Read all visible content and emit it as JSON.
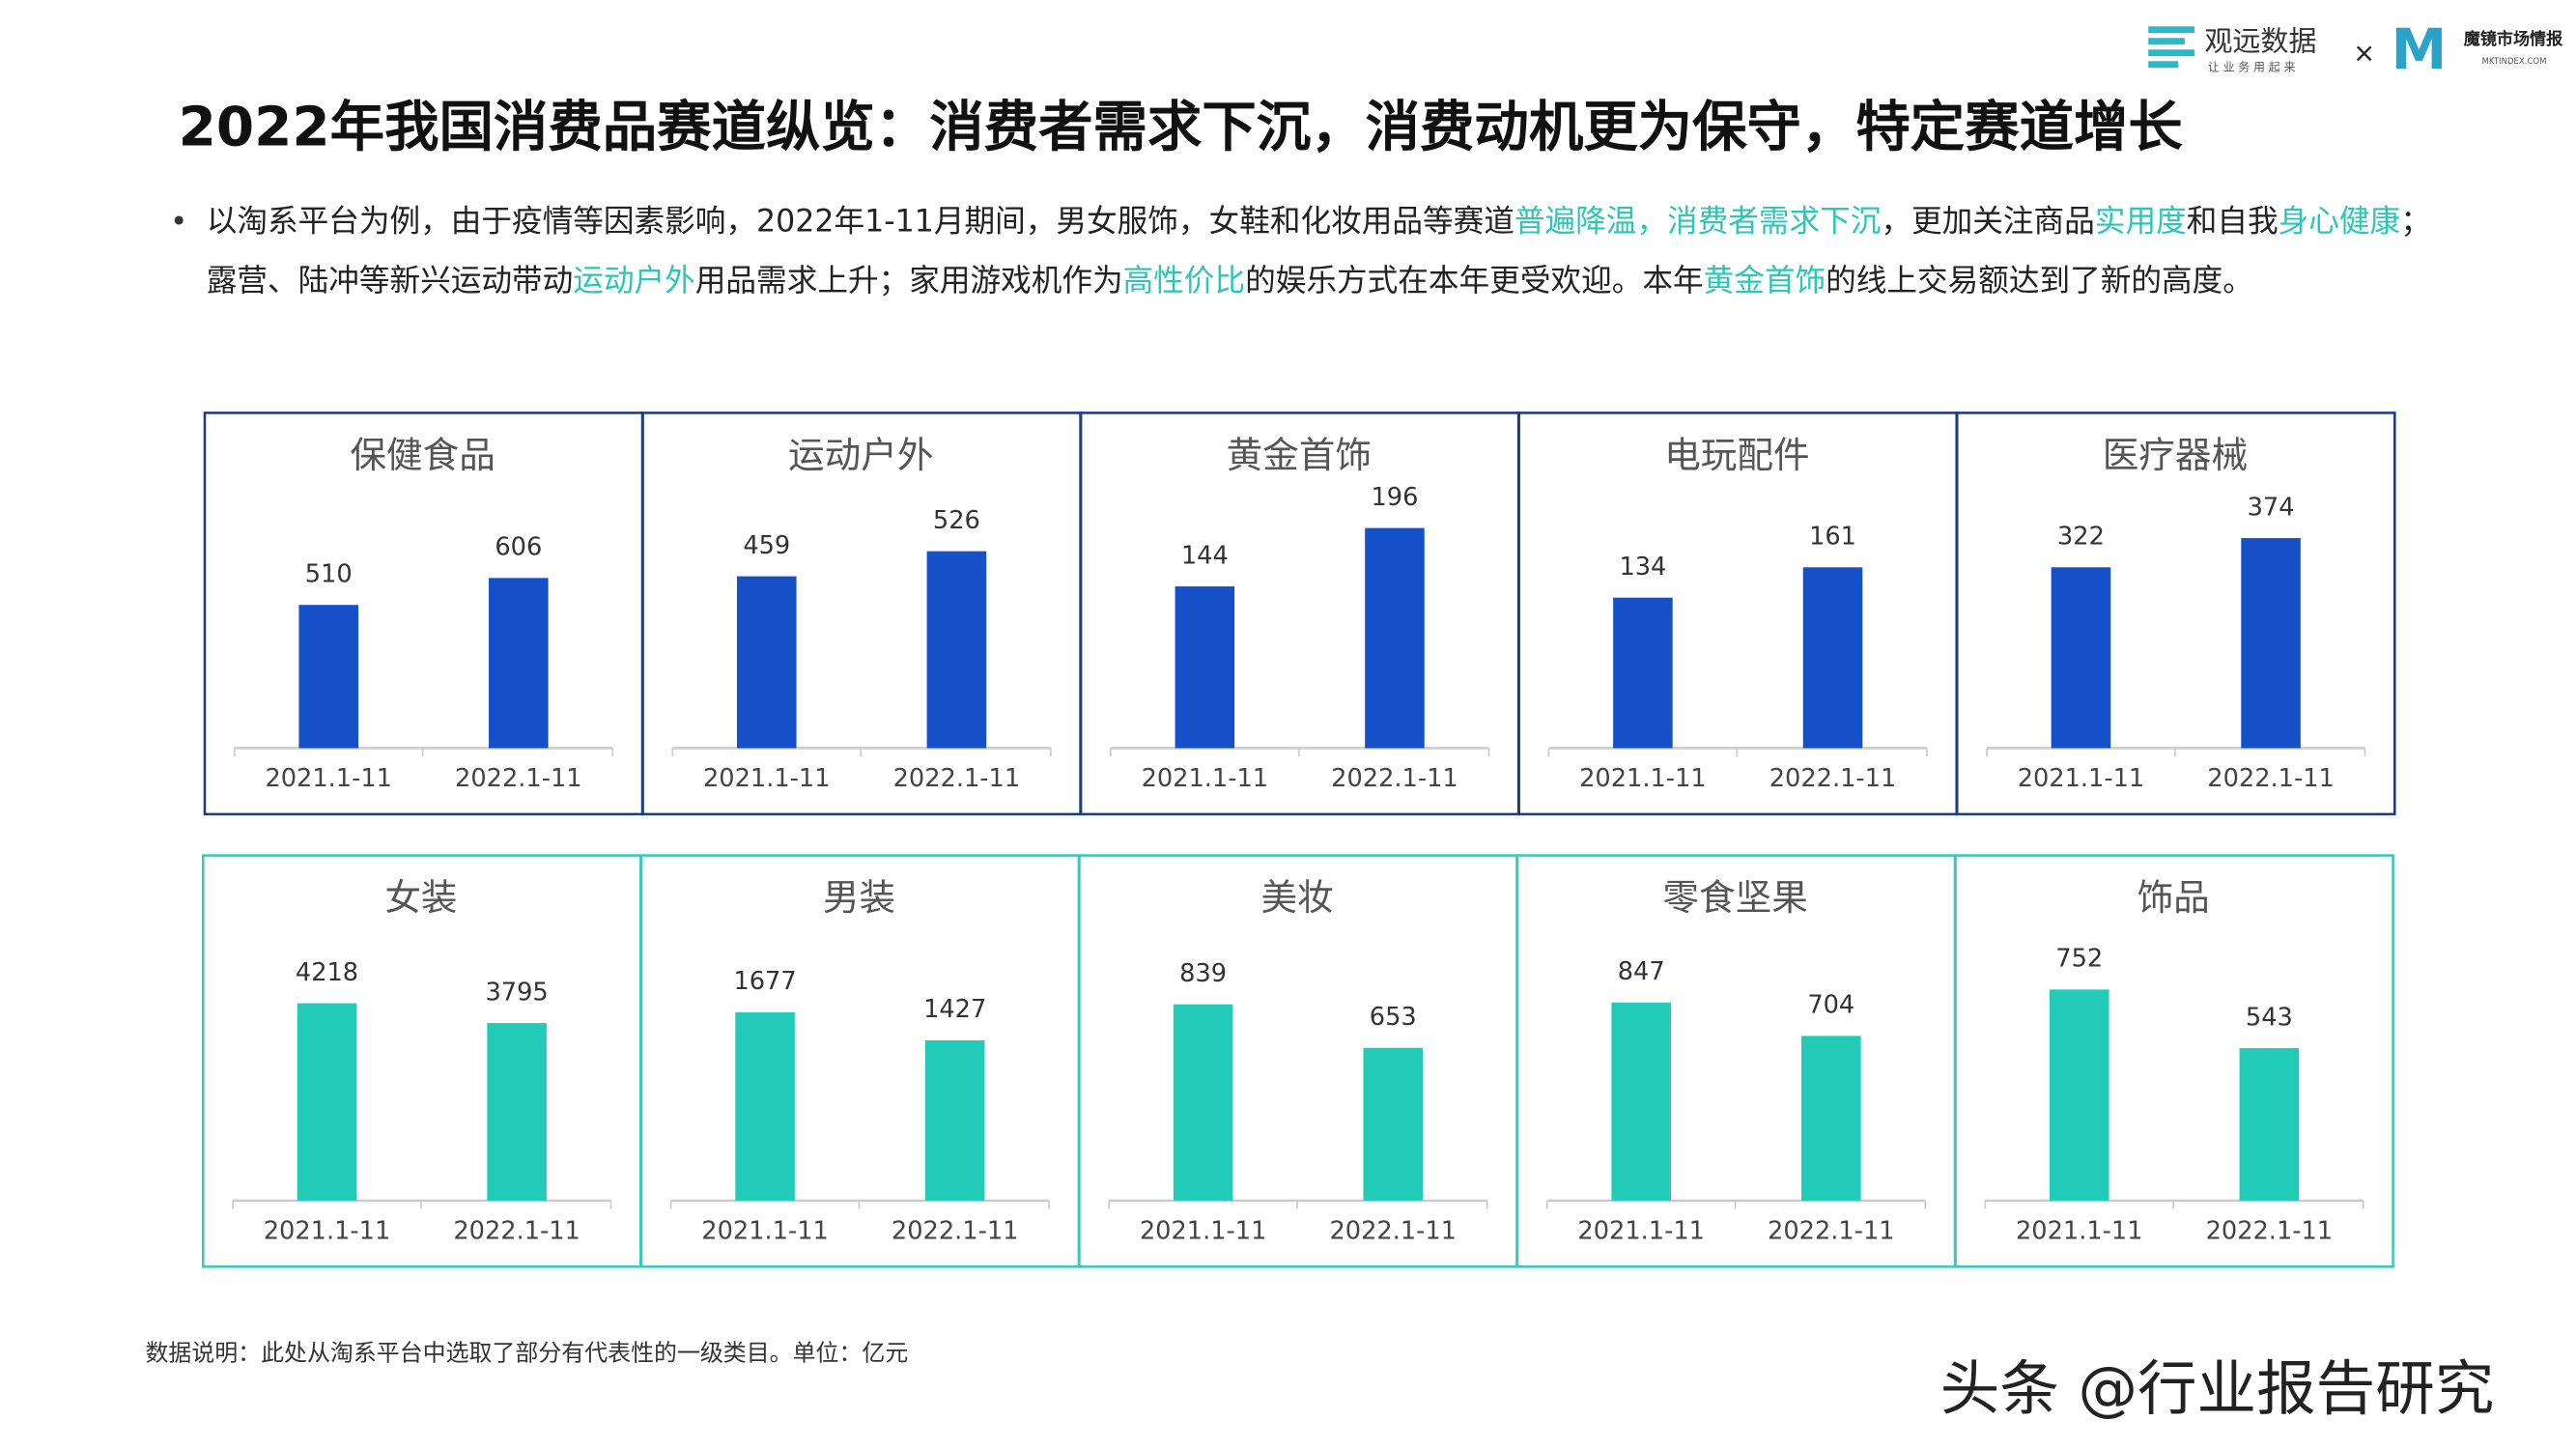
{
  "header": {
    "title": "2022年我国消费品赛道纵览：消费者需求下沉，消费动机更为保守，特定赛道增长",
    "logo_left": "观远数据",
    "logo_left_sub": "让 业 务 用 起 来",
    "logo_sep": "×",
    "logo_right_mark": "M",
    "logo_right": "魔镜市场情报",
    "logo_right_sub": "MKTINDEX.COM"
  },
  "bullet": [
    {
      "text": "以淘系平台为例，由于疫情等因素影响，2022年1-11月期间，男女服饰，女鞋和化妆用品等赛道",
      "highlight": false
    },
    {
      "text": "普遍降温，消费者需求下沉",
      "highlight": true
    },
    {
      "text": "，更加关注商品",
      "highlight": false
    },
    {
      "text": "实用度",
      "highlight": true
    },
    {
      "text": "和自我",
      "highlight": false
    },
    {
      "text": "身心健康",
      "highlight": true
    },
    {
      "text": "；露营、陆冲等新兴运动带动",
      "highlight": false
    },
    {
      "text": "运动户外",
      "highlight": true
    },
    {
      "text": "用品需求上升；家用游戏机作为",
      "highlight": false
    },
    {
      "text": "高性价比",
      "highlight": true
    },
    {
      "text": "的娱乐方式在本年更受欢迎。本年",
      "highlight": false
    },
    {
      "text": "黄金首饰",
      "highlight": true
    },
    {
      "text": "的线上交易额达到了新的高度。",
      "highlight": false
    }
  ],
  "chart_data": [
    {
      "type": "bar",
      "title": "保健食品",
      "categories": [
        "2021.1-11",
        "2022.1-11"
      ],
      "values": [
        510,
        606
      ],
      "color": "#1550c8",
      "ylim": [
        0,
        1000
      ]
    },
    {
      "type": "bar",
      "title": "运动户外",
      "categories": [
        "2021.1-11",
        "2022.1-11"
      ],
      "values": [
        459,
        526
      ],
      "color": "#1550c8",
      "ylim": [
        0,
        750
      ]
    },
    {
      "type": "bar",
      "title": "黄金首饰",
      "categories": [
        "2021.1-11",
        "2022.1-11"
      ],
      "values": [
        144,
        196
      ],
      "color": "#1550c8",
      "ylim": [
        0,
        250
      ]
    },
    {
      "type": "bar",
      "title": "电玩配件",
      "categories": [
        "2021.1-11",
        "2022.1-11"
      ],
      "values": [
        134,
        161
      ],
      "color": "#1550c8",
      "ylim": [
        0,
        250
      ]
    },
    {
      "type": "bar",
      "title": "医疗器械",
      "categories": [
        "2021.1-11",
        "2022.1-11"
      ],
      "values": [
        322,
        374
      ],
      "color": "#1550c8",
      "ylim": [
        0,
        500
      ]
    },
    {
      "type": "bar",
      "title": "女装",
      "categories": [
        "2021.1-11",
        "2022.1-11"
      ],
      "values": [
        4218,
        3795
      ],
      "color": "#22cbb8",
      "ylim": [
        0,
        6000
      ]
    },
    {
      "type": "bar",
      "title": "男装",
      "categories": [
        "2021.1-11",
        "2022.1-11"
      ],
      "values": [
        1677,
        1427
      ],
      "color": "#22cbb8",
      "ylim": [
        0,
        2500
      ]
    },
    {
      "type": "bar",
      "title": "美妆",
      "categories": [
        "2021.1-11",
        "2022.1-11"
      ],
      "values": [
        839,
        653
      ],
      "color": "#22cbb8",
      "ylim": [
        0,
        1200
      ]
    },
    {
      "type": "bar",
      "title": "零食坚果",
      "categories": [
        "2021.1-11",
        "2022.1-11"
      ],
      "values": [
        847,
        704
      ],
      "color": "#22cbb8",
      "ylim": [
        0,
        1200
      ]
    },
    {
      "type": "bar",
      "title": "饰品",
      "categories": [
        "2021.1-11",
        "2022.1-11"
      ],
      "values": [
        752,
        543
      ],
      "color": "#22cbb8",
      "ylim": [
        0,
        1000
      ]
    }
  ],
  "footnote": "数据说明：此处从淘系平台中选取了部分有代表性的一级类目。单位：亿元",
  "watermark": "头条 @行业报告研究"
}
